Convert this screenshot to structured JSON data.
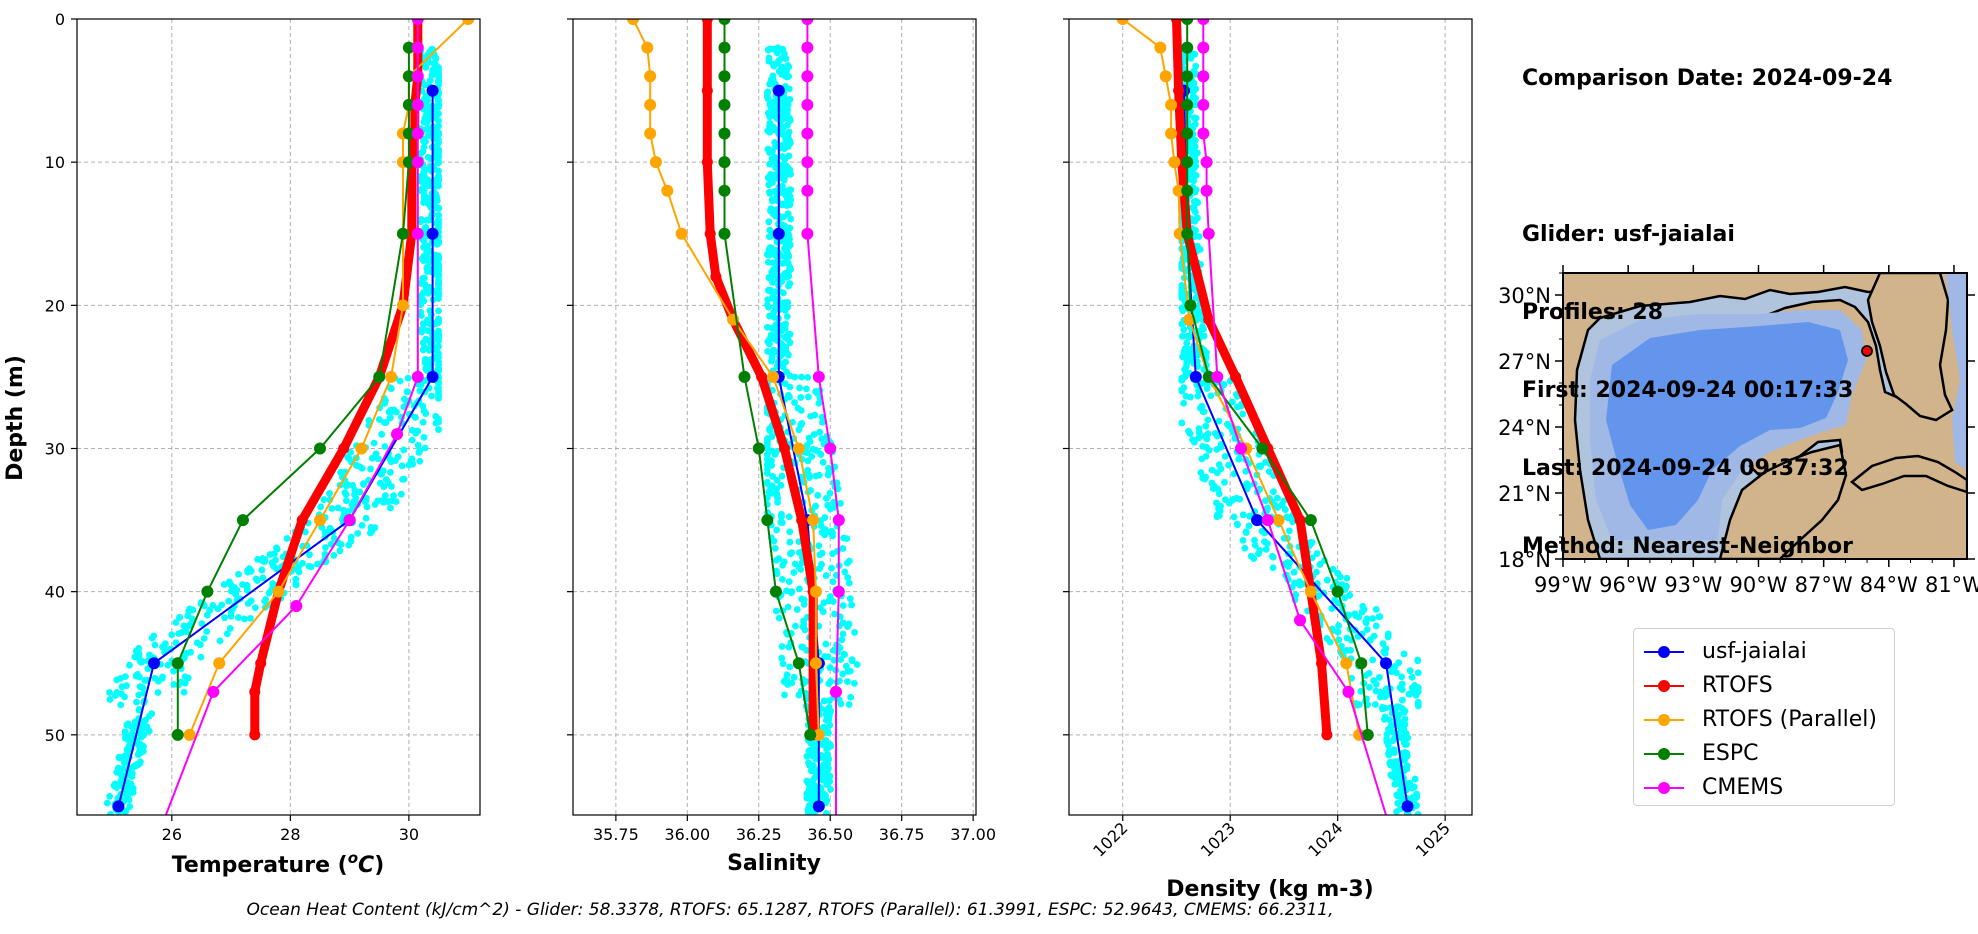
{
  "y_axis_label": "Depth (m)",
  "info": {
    "comparison_date": "Comparison Date: 2024-09-24",
    "glider": "Glider: usf-jaialai",
    "profiles": "Profiles: 28",
    "first": "First: 2024-09-24 00:17:33",
    "last": "Last: 2024-09-24 09:37:32",
    "method": "Method: Nearest-Neighbor"
  },
  "legend": [
    {
      "name": "usf-jaialai",
      "color": "#0000ff"
    },
    {
      "name": "RTOFS",
      "color": "#ff0000"
    },
    {
      "name": "RTOFS (Parallel)",
      "color": "#ffa500"
    },
    {
      "name": "ESPC",
      "color": "#008000"
    },
    {
      "name": "CMEMS",
      "color": "#ff00ff"
    }
  ],
  "footer": "Ocean Heat Content (kJ/cm^2) - Glider: 58.3378,  RTOFS: 65.1287,  RTOFS (Parallel): 61.3991,  ESPC: 52.9643,  CMEMS: 66.2311,",
  "map": {
    "lat_ticks": [
      "30°N",
      "27°N",
      "24°N",
      "21°N",
      "18°N"
    ],
    "lon_ticks": [
      "99°W",
      "96°W",
      "93°W",
      "90°W",
      "87°W",
      "84°W",
      "81°W"
    ],
    "glider_marker": {
      "lon": -84.1,
      "lat": 27.6
    },
    "colors": {
      "land": "#d2b48c",
      "shelf": "#b0c4de",
      "slope": "#9fb8e6",
      "deep": "#6495ed"
    }
  },
  "chart_data": [
    {
      "type": "line",
      "xlabel": "Temperature (°C)",
      "ylabel": "Depth (m)",
      "xlim": [
        24.4,
        31.2
      ],
      "ylim": [
        55.6,
        0
      ],
      "xticks": [
        26,
        28,
        30
      ],
      "yticks": [
        0,
        10,
        20,
        30,
        40,
        50
      ],
      "grid": true,
      "scatter": {
        "name": "glider profiles",
        "color": "#00ffff",
        "x_min": 24.9,
        "x_max": 30.5
      },
      "series": [
        {
          "name": "usf-jaialai",
          "color": "#0000ff",
          "width": 2,
          "x": [
            30.4,
            30.4,
            30.4,
            29.0,
            25.7,
            25.1
          ],
          "depth": [
            5,
            15,
            25,
            35,
            45,
            55
          ]
        },
        {
          "name": "RTOFS",
          "color": "#ff0000",
          "width": 9,
          "x": [
            30.15,
            30.15,
            30.15,
            30.1,
            30.1,
            30.05,
            30.05,
            29.9,
            29.5,
            28.9,
            28.2,
            27.8,
            27.5,
            27.4,
            27.4
          ],
          "depth": [
            0,
            2,
            4,
            6,
            8,
            10,
            15,
            20,
            25,
            30,
            35,
            40,
            45,
            47,
            50
          ]
        },
        {
          "name": "RTOFS (Parallel)",
          "color": "#ffa500",
          "width": 2,
          "x": [
            31.0,
            30.0,
            30.0,
            29.9,
            29.9,
            29.9,
            29.9,
            29.7,
            29.2,
            28.5,
            27.8,
            26.8,
            26.3
          ],
          "depth": [
            0,
            4,
            6,
            8,
            10,
            15,
            20,
            25,
            30,
            35,
            40,
            45,
            50
          ]
        },
        {
          "name": "ESPC",
          "color": "#008000",
          "width": 2,
          "x": [
            30.0,
            30.0,
            30.0,
            30.0,
            30.0,
            29.9,
            29.5,
            28.5,
            27.2,
            26.6,
            26.1,
            26.1
          ],
          "depth": [
            2,
            4,
            6,
            8,
            10,
            15,
            25,
            30,
            35,
            40,
            45,
            50
          ]
        },
        {
          "name": "CMEMS",
          "color": "#ff00ff",
          "width": 2,
          "x": [
            30.15,
            30.15,
            30.15,
            30.15,
            30.15,
            30.15,
            30.15,
            30.15,
            29.8,
            29.0,
            28.1,
            26.7,
            25.9
          ],
          "depth": [
            0,
            2,
            4,
            6,
            8,
            10,
            15,
            25,
            29,
            35,
            41,
            47,
            55.6
          ]
        }
      ]
    },
    {
      "type": "line",
      "xlabel": "Salinity",
      "ylabel": "",
      "xlim": [
        35.6,
        37.01
      ],
      "ylim": [
        55.6,
        0
      ],
      "xticks": [
        "35.75",
        "36.00",
        "36.25",
        "36.50",
        "36.75",
        "37.00"
      ],
      "yticks": [
        0,
        10,
        20,
        30,
        40,
        50
      ],
      "grid": true,
      "scatter": {
        "name": "glider profiles",
        "color": "#00ffff",
        "x_min": 36.28,
        "x_max": 36.62
      },
      "series": [
        {
          "name": "usf-jaialai",
          "color": "#0000ff",
          "width": 2,
          "x": [
            36.32,
            36.32,
            36.32,
            36.42,
            36.46,
            36.46
          ],
          "depth": [
            5,
            15,
            25,
            35,
            45,
            55
          ]
        },
        {
          "name": "RTOFS",
          "color": "#ff0000",
          "width": 9,
          "x": [
            36.07,
            36.07,
            36.07,
            36.08,
            36.1,
            36.16,
            36.26,
            36.34,
            36.4,
            36.44,
            36.44
          ],
          "depth": [
            0,
            5,
            10,
            15,
            18,
            21,
            25,
            30,
            35,
            40,
            50
          ]
        },
        {
          "name": "RTOFS (Parallel)",
          "color": "#ffa500",
          "width": 2,
          "x": [
            35.81,
            35.86,
            35.87,
            35.87,
            35.87,
            35.89,
            35.93,
            35.98,
            36.16,
            36.3,
            36.39,
            36.44,
            36.45,
            36.45,
            36.46
          ],
          "depth": [
            0,
            2,
            4,
            6,
            8,
            10,
            12,
            15,
            21,
            25,
            30,
            35,
            40,
            45,
            50
          ]
        },
        {
          "name": "ESPC",
          "color": "#008000",
          "width": 2,
          "x": [
            36.13,
            36.13,
            36.13,
            36.13,
            36.13,
            36.13,
            36.13,
            36.13,
            36.2,
            36.25,
            36.28,
            36.31,
            36.39,
            36.43
          ],
          "depth": [
            0,
            2,
            4,
            6,
            8,
            10,
            12,
            15,
            25,
            30,
            35,
            40,
            45,
            50
          ]
        },
        {
          "name": "CMEMS",
          "color": "#ff00ff",
          "width": 2,
          "x": [
            36.42,
            36.42,
            36.42,
            36.42,
            36.42,
            36.42,
            36.42,
            36.42,
            36.46,
            36.5,
            36.53,
            36.53,
            36.52,
            36.52
          ],
          "depth": [
            0,
            2,
            4,
            6,
            8,
            10,
            12,
            15,
            25,
            30,
            35,
            40,
            47,
            55.6
          ]
        }
      ]
    },
    {
      "type": "line",
      "xlabel": "Density (kg m-3)",
      "ylabel": "",
      "xlim": [
        1021.5,
        1025.25
      ],
      "ylim": [
        55.6,
        0
      ],
      "xticks": [
        1022,
        1023,
        1024,
        1025
      ],
      "yticks": [
        0,
        10,
        20,
        30,
        40,
        50
      ],
      "grid": true,
      "scatter": {
        "name": "glider profiles",
        "color": "#00ffff",
        "x_min": 1022.55,
        "x_max": 1024.75
      },
      "series": [
        {
          "name": "usf-jaialai",
          "color": "#0000ff",
          "width": 2,
          "x": [
            1022.57,
            1022.6,
            1022.68,
            1023.25,
            1024.45,
            1024.65
          ],
          "depth": [
            5,
            15,
            25,
            35,
            45,
            55
          ]
        },
        {
          "name": "RTOFS",
          "color": "#ff0000",
          "width": 9,
          "x": [
            1022.5,
            1022.52,
            1022.55,
            1022.6,
            1022.8,
            1023.05,
            1023.35,
            1023.65,
            1023.85,
            1023.9
          ],
          "depth": [
            0,
            5,
            10,
            15,
            21,
            25,
            30,
            35,
            45,
            50
          ]
        },
        {
          "name": "RTOFS (Parallel)",
          "color": "#ffa500",
          "width": 2,
          "x": [
            1022.0,
            1022.35,
            1022.4,
            1022.45,
            1022.45,
            1022.48,
            1022.52,
            1022.53,
            1022.62,
            1022.8,
            1023.15,
            1023.45,
            1023.75,
            1024.08,
            1024.2
          ],
          "depth": [
            0,
            2,
            4,
            6,
            8,
            10,
            12,
            15,
            21,
            25,
            30,
            35,
            40,
            45,
            50
          ]
        },
        {
          "name": "ESPC",
          "color": "#008000",
          "width": 2,
          "x": [
            1022.6,
            1022.6,
            1022.6,
            1022.6,
            1022.6,
            1022.6,
            1022.6,
            1022.6,
            1022.63,
            1022.8,
            1023.3,
            1023.75,
            1024.0,
            1024.22,
            1024.28
          ],
          "depth": [
            0,
            2,
            4,
            6,
            8,
            10,
            12,
            15,
            20,
            25,
            30,
            35,
            40,
            45,
            50
          ]
        },
        {
          "name": "CMEMS",
          "color": "#ff00ff",
          "width": 2,
          "x": [
            1022.75,
            1022.75,
            1022.75,
            1022.75,
            1022.75,
            1022.78,
            1022.78,
            1022.8,
            1022.88,
            1023.1,
            1023.35,
            1023.65,
            1024.1,
            1024.45
          ],
          "depth": [
            0,
            2,
            4,
            6,
            8,
            10,
            12,
            15,
            25,
            30,
            35,
            42,
            47,
            55.6
          ]
        }
      ]
    }
  ]
}
